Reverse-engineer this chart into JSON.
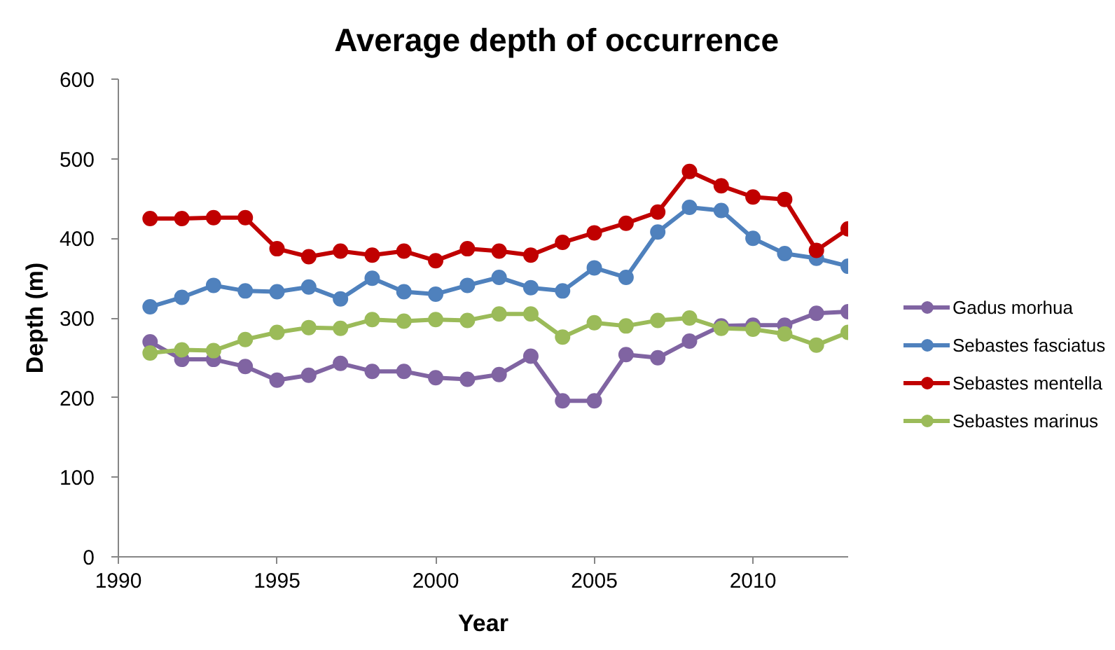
{
  "chart_data": {
    "type": "line",
    "title": "Average depth of occurrence",
    "xlabel": "Year",
    "ylabel": "Depth (m)",
    "x": [
      1991,
      1992,
      1993,
      1994,
      1995,
      1996,
      1997,
      1998,
      1999,
      2000,
      2001,
      2002,
      2003,
      2004,
      2005,
      2006,
      2007,
      2008,
      2009,
      2010,
      2011,
      2012,
      2013
    ],
    "xlim": [
      1990,
      2013
    ],
    "xticks": [
      1990,
      1995,
      2000,
      2005,
      2010
    ],
    "ylim": [
      0,
      600
    ],
    "yticks": [
      0,
      100,
      200,
      300,
      400,
      500,
      600
    ],
    "grid": false,
    "legend": "right",
    "marker": "circle",
    "line_style": "solid",
    "series": [
      {
        "name": "Gadus morhua",
        "color": "#8064a2",
        "values": [
          270,
          248,
          248,
          239,
          222,
          228,
          243,
          233,
          233,
          225,
          223,
          229,
          252,
          196,
          196,
          254,
          250,
          271,
          290,
          291,
          291,
          306,
          308
        ]
      },
      {
        "name": "Sebastes fasciatus",
        "color": "#4f81bd",
        "values": [
          314,
          326,
          341,
          334,
          333,
          339,
          324,
          350,
          333,
          330,
          341,
          351,
          338,
          334,
          363,
          351,
          408,
          439,
          435,
          400,
          381,
          375,
          365
        ]
      },
      {
        "name": "Sebastes mentella",
        "color": "#c00000",
        "values": [
          425,
          425,
          426,
          426,
          387,
          377,
          384,
          379,
          384,
          372,
          387,
          384,
          379,
          395,
          407,
          419,
          433,
          484,
          466,
          452,
          449,
          385,
          412
        ]
      },
      {
        "name": "Sebastes marinus",
        "color": "#9bbb59",
        "values": [
          256,
          260,
          259,
          273,
          282,
          288,
          287,
          298,
          296,
          298,
          297,
          305,
          305,
          276,
          294,
          290,
          297,
          300,
          287,
          286,
          280,
          266,
          282
        ]
      }
    ]
  }
}
